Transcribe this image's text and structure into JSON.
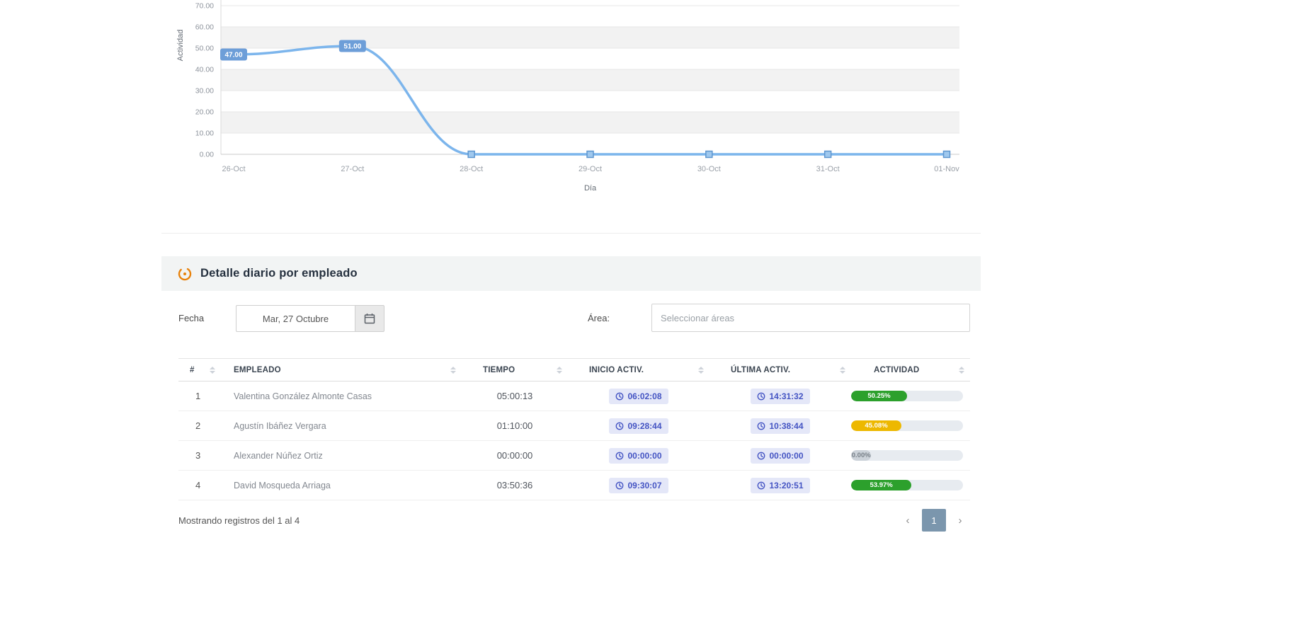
{
  "colors": {
    "line": "#7cb5ec",
    "marker_fill": "#9fc8ee",
    "marker_stroke": "#5e96cf",
    "badge_bg": "#6d9ed8",
    "band": "#f2f2f2",
    "grid": "#e7e7e7",
    "section_bg": "#f2f4f4",
    "accent_orange": "#e8820c",
    "time_badge_bg": "#e4e7f8",
    "time_badge_text": "#4454c3",
    "active_page_bg": "#7b96ad",
    "green": "#2ca02c",
    "yellow": "#edb800",
    "gray_bar": "#ccd2d9"
  },
  "chart_data": {
    "type": "line",
    "title": "",
    "xlabel": "Día",
    "ylabel": "Actividad",
    "categories": [
      "26-Oct",
      "27-Oct",
      "28-Oct",
      "29-Oct",
      "30-Oct",
      "31-Oct",
      "01-Nov"
    ],
    "values": [
      47,
      51,
      0,
      0,
      0,
      0,
      0
    ],
    "data_labels": [
      "47.00",
      "51.00",
      "",
      "",
      "",
      "",
      ""
    ],
    "ylim": [
      0,
      70
    ],
    "ytick_step": 10,
    "grid": true,
    "legend": false
  },
  "section": {
    "title": "Detalle diario por empleado"
  },
  "filters": {
    "fecha_label": "Fecha",
    "fecha_value": "Mar, 27 Octubre",
    "area_label": "Área:",
    "area_placeholder": "Seleccionar áreas"
  },
  "table": {
    "headers": [
      "#",
      "EMPLEADO",
      "TIEMPO",
      "INICIO ACTIV.",
      "ÚLTIMA ACTIV.",
      "ACTIVIDAD"
    ],
    "rows": [
      {
        "num": "1",
        "empleado": "Valentina González Almonte Casas",
        "tiempo": "05:00:13",
        "inicio": "06:02:08",
        "ultima": "14:31:32",
        "actividad_label": "50.25%",
        "actividad_pct": 50,
        "bar_color": "#2ca02c",
        "label_color": "#ffffff"
      },
      {
        "num": "2",
        "empleado": "Agustín Ibáñez Vergara",
        "tiempo": "01:10:00",
        "inicio": "09:28:44",
        "ultima": "10:38:44",
        "actividad_label": "45.08%",
        "actividad_pct": 45,
        "bar_color": "#edb800",
        "label_color": "#ffffff"
      },
      {
        "num": "3",
        "empleado": "Alexander Núñez Ortiz",
        "tiempo": "00:00:00",
        "inicio": "00:00:00",
        "ultima": "00:00:00",
        "actividad_label": "0.00%",
        "actividad_pct": 18,
        "bar_color": "#ccd2d9",
        "label_color": "#7a828a"
      },
      {
        "num": "4",
        "empleado": "David Mosqueda Arriaga",
        "tiempo": "03:50:36",
        "inicio": "09:30:07",
        "ultima": "13:20:51",
        "actividad_label": "53.97%",
        "actividad_pct": 54,
        "bar_color": "#2ca02c",
        "label_color": "#ffffff"
      }
    ]
  },
  "footer": {
    "showing": "Mostrando registros del 1 al 4",
    "prev": "‹",
    "page": "1",
    "next": "›"
  }
}
